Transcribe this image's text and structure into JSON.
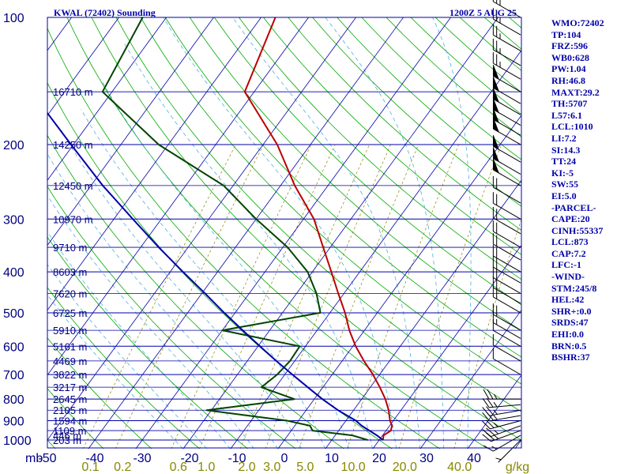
{
  "header": {
    "station": "KWAL (72402) Sounding",
    "time": "1200Z  5 AUG 25"
  },
  "colors": {
    "isobar": "#0000aa",
    "isotherm": "#0000aa",
    "dry_adiabat": "#00aa00",
    "moist_adiabat": "#4fb0e0",
    "mixing_ratio": "#888800",
    "temperature": "#bb0000",
    "dewpoint": "#004400",
    "parcel": "#0000aa",
    "text": "#0000aa"
  },
  "stats": [
    "WMO:72402",
    "TP:104",
    "FRZ:596",
    "WB0:628",
    "PW:1.04",
    "RH:46.8",
    "MAXT:29.2",
    "TH:5707",
    "L57:6.1",
    "LCL:1010",
    "LI:7.2",
    "SI:14.3",
    "TT:24",
    "KI:-5",
    "SW:55",
    "EI:5.0",
    "-PARCEL-",
    "CAPE:20",
    "CINH:55337",
    "LCL:873",
    "CAP:7.2",
    "LFC:-1",
    "-WIND-",
    "STM:245/8",
    "HEL:42",
    "SHR+:0.0",
    "SRDS:47",
    "EHI:0.0",
    "BRN:0.5",
    "BSHR:37"
  ],
  "chart_data": {
    "type": "skew-t log-p",
    "title": "KWAL (72402) Sounding",
    "time": "1200Z  5 AUG 25",
    "y_unit_label": "mb",
    "mixing_ratio_unit": "g/kg",
    "pressure_range_mb": [
      1000,
      100
    ],
    "temperature_range_c": [
      -50,
      50
    ],
    "pressure_tick_labels": [
      "100",
      "200",
      "300",
      "400",
      "500",
      "600",
      "700",
      "800",
      "900",
      "1000"
    ],
    "temperature_tick_labels": [
      "-50",
      "-40",
      "-30",
      "-20",
      "-10",
      "0",
      "10",
      "20",
      "30",
      "40"
    ],
    "mixing_ratio_labels": [
      "0.1",
      "0.2",
      "0.6",
      "1.0",
      "2.0",
      "3.0",
      "5.0",
      "10.0",
      "20.0",
      "40.0"
    ],
    "height_labels": [
      {
        "p": 1000,
        "label": "203 m"
      },
      {
        "p": 975,
        "label": "446 m"
      },
      {
        "p": 950,
        "label": "1109 m"
      },
      {
        "p": 900,
        "label": "1594 m"
      },
      {
        "p": 850,
        "label": "2105 m"
      },
      {
        "p": 800,
        "label": "2645 m"
      },
      {
        "p": 750,
        "label": "3217 m"
      },
      {
        "p": 700,
        "label": "3822 m"
      },
      {
        "p": 650,
        "label": "4469 m"
      },
      {
        "p": 600,
        "label": "5161 m"
      },
      {
        "p": 550,
        "label": "5910 m"
      },
      {
        "p": 500,
        "label": "6725 m"
      },
      {
        "p": 450,
        "label": "7620 m"
      },
      {
        "p": 400,
        "label": "8603 m"
      },
      {
        "p": 350,
        "label": "9710 m"
      },
      {
        "p": 300,
        "label": "10970 m"
      },
      {
        "p": 250,
        "label": "12450 m"
      },
      {
        "p": 200,
        "label": "14250 m"
      },
      {
        "p": 150,
        "label": "16710 m"
      }
    ],
    "series": [
      {
        "name": "Temperature",
        "points": [
          [
            1000,
            20.8
          ],
          [
            975,
            20.2
          ],
          [
            950,
            21.0
          ],
          [
            925,
            20.5
          ],
          [
            900,
            19.3
          ],
          [
            850,
            17.4
          ],
          [
            800,
            15.0
          ],
          [
            750,
            12.0
          ],
          [
            700,
            8.6
          ],
          [
            650,
            4.6
          ],
          [
            600,
            0.6
          ],
          [
            550,
            -3.2
          ],
          [
            500,
            -6.8
          ],
          [
            450,
            -11.2
          ],
          [
            400,
            -16.0
          ],
          [
            350,
            -21.5
          ],
          [
            300,
            -27.8
          ],
          [
            250,
            -37.0
          ],
          [
            200,
            -47.0
          ],
          [
            150,
            -62.0
          ],
          [
            100,
            -67.0
          ]
        ]
      },
      {
        "name": "Dewpoint",
        "points": [
          [
            1000,
            17.6
          ],
          [
            975,
            13.6
          ],
          [
            950,
            4.5
          ],
          [
            925,
            3.2
          ],
          [
            900,
            -2.4
          ],
          [
            850,
            -21.0
          ],
          [
            800,
            -4.2
          ],
          [
            750,
            -13.0
          ],
          [
            700,
            -11.6
          ],
          [
            650,
            -11.0
          ],
          [
            600,
            -11.2
          ],
          [
            550,
            -30.0
          ],
          [
            500,
            -12.0
          ],
          [
            450,
            -15.8
          ],
          [
            400,
            -21.0
          ],
          [
            350,
            -29.0
          ],
          [
            300,
            -40.0
          ],
          [
            250,
            -52.0
          ],
          [
            200,
            -72.0
          ],
          [
            150,
            -92.0
          ],
          [
            100,
            -95.0
          ]
        ]
      },
      {
        "name": "Parcel",
        "points": [
          [
            1000,
            20.8
          ],
          [
            975,
            18.8
          ],
          [
            950,
            16.5
          ],
          [
            925,
            14.1
          ],
          [
            900,
            12.1
          ],
          [
            850,
            6.7
          ],
          [
            800,
            1.7
          ],
          [
            750,
            -3.2
          ],
          [
            700,
            -8.4
          ],
          [
            650,
            -13.9
          ],
          [
            600,
            -19.6
          ],
          [
            550,
            -25.7
          ],
          [
            500,
            -32.3
          ],
          [
            450,
            -39.3
          ],
          [
            400,
            -47.3
          ],
          [
            350,
            -56.2
          ],
          [
            300,
            -66.0
          ],
          [
            250,
            -77.5
          ],
          [
            200,
            -90.5
          ],
          [
            150,
            -107.0
          ],
          [
            120,
            -119.0
          ]
        ]
      }
    ],
    "wind_barbs": [
      {
        "p": 1000,
        "dir": 225,
        "spd": 5
      },
      {
        "p": 975,
        "dir": 240,
        "spd": 15
      },
      {
        "p": 950,
        "dir": 250,
        "spd": 25
      },
      {
        "p": 925,
        "dir": 250,
        "spd": 25
      },
      {
        "p": 900,
        "dir": 255,
        "spd": 25
      },
      {
        "p": 875,
        "dir": 260,
        "spd": 25
      },
      {
        "p": 850,
        "dir": 260,
        "spd": 25
      },
      {
        "p": 825,
        "dir": 265,
        "spd": 25
      },
      {
        "p": 800,
        "dir": 270,
        "spd": 25
      },
      {
        "p": 700,
        "dir": 300,
        "spd": 10
      },
      {
        "p": 650,
        "dir": 300,
        "spd": 10
      },
      {
        "p": 600,
        "dir": 300,
        "spd": 10
      },
      {
        "p": 575,
        "dir": 300,
        "spd": 15
      },
      {
        "p": 550,
        "dir": 300,
        "spd": 20
      },
      {
        "p": 500,
        "dir": 300,
        "spd": 20
      },
      {
        "p": 475,
        "dir": 300,
        "spd": 20
      },
      {
        "p": 450,
        "dir": 300,
        "spd": 20
      },
      {
        "p": 425,
        "dir": 300,
        "spd": 20
      },
      {
        "p": 400,
        "dir": 300,
        "spd": 20
      },
      {
        "p": 375,
        "dir": 300,
        "spd": 20
      },
      {
        "p": 350,
        "dir": 300,
        "spd": 20
      },
      {
        "p": 325,
        "dir": 300,
        "spd": 20
      },
      {
        "p": 300,
        "dir": 300,
        "spd": 20
      },
      {
        "p": 275,
        "dir": 300,
        "spd": 20
      },
      {
        "p": 250,
        "dir": 300,
        "spd": 50
      },
      {
        "p": 235,
        "dir": 300,
        "spd": 50
      },
      {
        "p": 220,
        "dir": 300,
        "spd": 50
      },
      {
        "p": 200,
        "dir": 300,
        "spd": 50
      },
      {
        "p": 190,
        "dir": 300,
        "spd": 50
      },
      {
        "p": 180,
        "dir": 300,
        "spd": 50
      },
      {
        "p": 170,
        "dir": 300,
        "spd": 50
      },
      {
        "p": 160,
        "dir": 300,
        "spd": 50
      },
      {
        "p": 150,
        "dir": 300,
        "spd": 50
      },
      {
        "p": 140,
        "dir": 300,
        "spd": 25
      },
      {
        "p": 130,
        "dir": 300,
        "spd": 25
      },
      {
        "p": 120,
        "dir": 300,
        "spd": 25
      },
      {
        "p": 110,
        "dir": 300,
        "spd": 25
      },
      {
        "p": 100,
        "dir": 300,
        "spd": 25
      }
    ]
  }
}
